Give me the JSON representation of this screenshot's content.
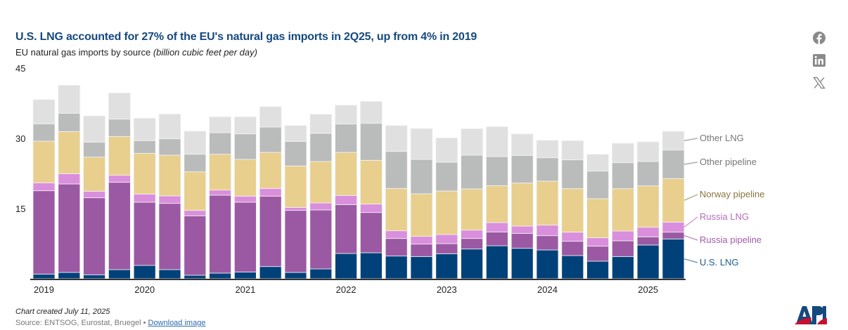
{
  "header": {
    "title": "U.S. LNG accounted for 27% of the EU's natural gas imports in 2Q25, up from 4% in 2019",
    "subtitle": "EU natural gas imports by source",
    "subtitle_unit": "(billion cubic feet per day)"
  },
  "footer": {
    "created": "Chart created July 11, 2025",
    "source": "Source: ENTSOG, Eurostat, Bruegel •",
    "download": "Download image",
    "logo": "API"
  },
  "social": [
    "facebook-icon",
    "linkedin-icon",
    "x-icon"
  ],
  "chart_data": {
    "type": "bar",
    "stacked": true,
    "title": "U.S. LNG accounted for 27% of the EU's natural gas imports in 2Q25, up from 4% in 2019",
    "ylabel": "",
    "xlabel": "",
    "ylim": [
      0,
      45
    ],
    "yticks": [
      "15",
      "30",
      "45"
    ],
    "ytick_values": [
      15,
      30,
      45
    ],
    "grid": false,
    "legend": "right",
    "categories": [
      "2019Q1",
      "2019Q2",
      "2019Q3",
      "2019Q4",
      "2020Q1",
      "2020Q2",
      "2020Q3",
      "2020Q4",
      "2021Q1",
      "2021Q2",
      "2021Q3",
      "2021Q4",
      "2022Q1",
      "2022Q2",
      "2022Q3",
      "2022Q4",
      "2023Q1",
      "2023Q2",
      "2023Q3",
      "2023Q4",
      "2024Q1",
      "2024Q2",
      "2024Q3",
      "2024Q4",
      "2025Q1",
      "2025Q2"
    ],
    "xtick_labels": [
      "2019",
      "2020",
      "2021",
      "2022",
      "2023",
      "2024",
      "2025"
    ],
    "series": [
      {
        "name": "U.S. LNG",
        "color": "#00417a",
        "label_color": "#1d5a8e",
        "values": [
          1.0,
          1.35,
          0.85,
          1.95,
          2.85,
          1.95,
          0.75,
          1.2,
          1.45,
          2.6,
          1.35,
          2.1,
          5.4,
          5.55,
          4.85,
          4.75,
          5.35,
          6.35,
          7.05,
          6.5,
          6.15,
          4.95,
          3.75,
          4.75,
          7.2,
          8.5
        ]
      },
      {
        "name": "Russia pipeline",
        "color": "#9b59a3",
        "label_color": "#a35aab",
        "values": [
          17.8,
          18.9,
          16.45,
          18.65,
          13.5,
          14.15,
          12.7,
          16.65,
          14.9,
          15.05,
          13.25,
          12.6,
          10.45,
          8.6,
          3.75,
          2.65,
          2.15,
          2.25,
          2.95,
          3.2,
          3.05,
          3.05,
          3.2,
          3.35,
          1.75,
          1.45
        ]
      },
      {
        "name": "Russia LNG",
        "color": "#d98fdc",
        "label_color": "#b56ebb",
        "values": [
          1.7,
          2.2,
          1.4,
          1.5,
          1.75,
          1.6,
          1.15,
          1.1,
          1.3,
          1.65,
          0.65,
          1.5,
          1.95,
          1.8,
          1.65,
          1.65,
          1.95,
          1.8,
          2.0,
          1.55,
          2.25,
          1.95,
          1.8,
          2.1,
          2.05,
          2.15
        ]
      },
      {
        "name": "Norway pipeline",
        "color": "#e8cf8e",
        "label_color": "#8a7540",
        "values": [
          8.9,
          9.0,
          7.3,
          8.3,
          8.7,
          8.7,
          8.25,
          7.65,
          7.85,
          7.7,
          8.85,
          8.85,
          9.2,
          9.35,
          9.05,
          9.1,
          9.3,
          8.8,
          7.9,
          9.2,
          9.4,
          9.3,
          8.35,
          9.05,
          8.85,
          9.3
        ]
      },
      {
        "name": "Other pipeline",
        "color": "#babcbb",
        "label_color": "#777777",
        "values": [
          3.7,
          3.9,
          3.2,
          3.7,
          2.7,
          3.5,
          3.75,
          4.6,
          5.45,
          5.4,
          5.25,
          6.0,
          6.05,
          7.9,
          7.9,
          7.35,
          6.15,
          7.2,
          6.2,
          5.9,
          5.0,
          6.15,
          5.9,
          5.55,
          5.2,
          6.1
        ]
      },
      {
        "name": "Other LNG",
        "color": "#e0e0e0",
        "label_color": "#777777",
        "values": [
          5.2,
          6.0,
          5.6,
          5.6,
          4.8,
          5.3,
          4.95,
          3.4,
          3.65,
          4.4,
          3.4,
          4.1,
          4.05,
          4.7,
          5.55,
          6.6,
          5.2,
          5.65,
          6.4,
          4.6,
          3.75,
          4.1,
          3.6,
          4.15,
          4.2,
          4.0
        ]
      }
    ]
  }
}
